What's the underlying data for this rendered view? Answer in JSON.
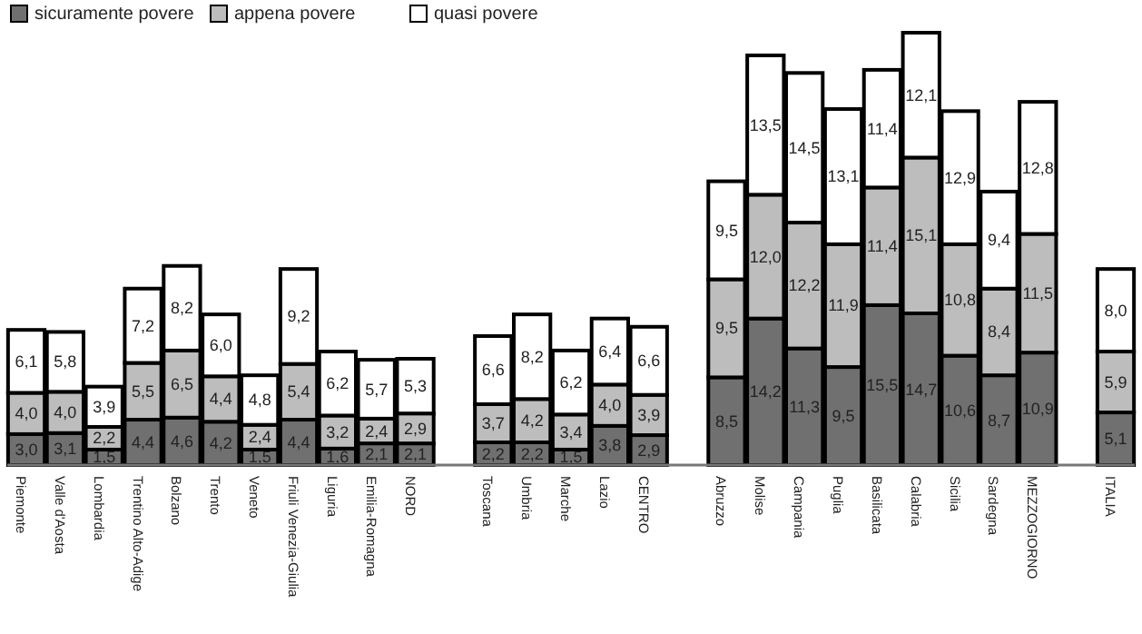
{
  "chart_data": {
    "type": "bar",
    "stacked": true,
    "legend": "top left",
    "categories": [
      "Piemonte",
      "Valle d'Aosta",
      "Lombardia",
      "Trentino Alto-Adige",
      "Bolzano",
      "Trento",
      "Veneto",
      "Friuli Venezia-Giulia",
      "Liguria",
      "Emilia-Romagna",
      "NORD",
      null,
      "Toscana",
      "Umbria",
      "Marche",
      "Lazio",
      "CENTRO",
      null,
      "Abruzzo",
      "Molise",
      "Campania",
      "Puglia",
      "Basilicata",
      "Calabria",
      "Sicilia",
      "Sardegna",
      "MEZZOGIORNO",
      null,
      "ITALIA"
    ],
    "series": [
      {
        "name": "sicuramente povere",
        "color": "#707070",
        "values": [
          3.0,
          3.1,
          1.5,
          4.4,
          4.6,
          4.2,
          1.5,
          4.4,
          1.6,
          2.1,
          2.1,
          null,
          2.2,
          2.2,
          1.5,
          3.8,
          2.9,
          null,
          8.5,
          14.2,
          11.3,
          9.5,
          15.5,
          14.7,
          10.6,
          8.7,
          10.9,
          null,
          5.1
        ],
        "value_labels": [
          "3,0",
          "3,1",
          "1,5",
          "4,4",
          "4,6",
          "4,2",
          "1,5",
          "4,4",
          "1,6",
          "2,1",
          "2,1",
          null,
          "2,2",
          "2,2",
          "1,5",
          "3,8",
          "2,9",
          null,
          "8,5",
          "14,2",
          "11,3",
          "9,5",
          "15,5",
          "14,7",
          "10,6",
          "8,7",
          "10,9",
          null,
          "5,1"
        ]
      },
      {
        "name": "appena povere",
        "color": "#bdbdbd",
        "values": [
          4.0,
          4.0,
          2.2,
          5.5,
          6.5,
          4.4,
          2.4,
          5.4,
          3.2,
          2.4,
          2.9,
          null,
          3.7,
          4.2,
          3.4,
          4.0,
          3.9,
          null,
          9.5,
          12.0,
          12.2,
          11.9,
          11.4,
          15.1,
          10.8,
          8.4,
          11.5,
          null,
          5.9
        ],
        "value_labels": [
          "4,0",
          "4,0",
          "2,2",
          "5,5",
          "6,5",
          "4,4",
          "2,4",
          "5,4",
          "3,2",
          "2,4",
          "2,9",
          null,
          "3,7",
          "4,2",
          "3,4",
          "4,0",
          "3,9",
          null,
          "9,5",
          "12,0",
          "12,2",
          "11,9",
          "11,4",
          "15,1",
          "10,8",
          "8,4",
          "11,5",
          null,
          "5,9"
        ]
      },
      {
        "name": "quasi povere",
        "color": "#ffffff",
        "values": [
          6.1,
          5.8,
          3.9,
          7.2,
          8.2,
          6.0,
          4.8,
          9.2,
          6.2,
          5.7,
          5.3,
          null,
          6.6,
          8.2,
          6.2,
          6.4,
          6.6,
          null,
          9.5,
          13.5,
          14.5,
          13.1,
          11.4,
          12.1,
          12.9,
          9.4,
          12.8,
          null,
          8.0
        ],
        "value_labels": [
          "6,1",
          "5,8",
          "3,9",
          "7,2",
          "8,2",
          "6,0",
          "4,8",
          "9,2",
          "6,2",
          "5,7",
          "5,3",
          null,
          "6,6",
          "8,2",
          "6,2",
          "6,4",
          "6,6",
          null,
          "9,5",
          "13,5",
          "14,5",
          "13,1",
          "11,4",
          "12,1",
          "12,9",
          "9,4",
          "12,8",
          null,
          "8,0"
        ]
      }
    ]
  }
}
